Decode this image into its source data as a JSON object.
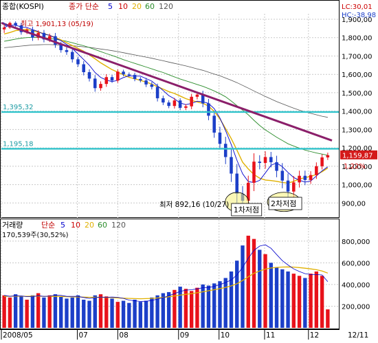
{
  "chart_data": [
    {
      "type": "candlestick",
      "panel": "price",
      "header": {
        "label_index": "종합(KOSPI)",
        "label_ma_prefix": "종가 단순",
        "ma_periods": [
          "5",
          "10",
          "20",
          "60",
          "120"
        ],
        "ma_colors": [
          "#0000cc",
          "#cc0000",
          "#e0b000",
          "#2a8c2a",
          "#555555"
        ]
      },
      "readout": {
        "lc": "LC:30,01",
        "hc": "HC:-38,98"
      },
      "y_ticks": [
        {
          "v": 1900,
          "label": "1,900,00"
        },
        {
          "v": 1800,
          "label": "1,800,00"
        },
        {
          "v": 1700,
          "label": "1,700,00"
        },
        {
          "v": 1600,
          "label": "1,600,00"
        },
        {
          "v": 1500,
          "label": "1,500,00"
        },
        {
          "v": 1400,
          "label": "1,400,00"
        },
        {
          "v": 1300,
          "label": "1,300,00"
        },
        {
          "v": 1200,
          "label": "1,200,00"
        },
        {
          "v": 1100,
          "label": "1,100,00"
        },
        {
          "v": 1000,
          "label": "1,000,00"
        },
        {
          "v": 900,
          "label": "900,00"
        }
      ],
      "ylim": [
        830,
        1930
      ],
      "current_price": {
        "value": 1159.87,
        "label": "1,159,87",
        "pct": "1,22%"
      },
      "horizontal_lines": [
        {
          "value": 1395.32,
          "label": "1,395,32"
        },
        {
          "value": 1195.18,
          "label": "1,195,18"
        }
      ],
      "trendline": {
        "start": {
          "x": 0.0,
          "y": 1880
        },
        "end": {
          "x": 1.0,
          "y": 1240
        }
      },
      "annotations": {
        "high": "최고 1,901,13 (05/19)",
        "low": "최저 892,16 (10/27)",
        "bottom1": "1차저점",
        "bottom2": "2차저점"
      },
      "closes": [
        1855,
        1880,
        1867,
        1830,
        1842,
        1800,
        1826,
        1790,
        1808,
        1762,
        1732,
        1722,
        1682,
        1655,
        1612,
        1577,
        1525,
        1548,
        1585,
        1566,
        1615,
        1600,
        1597,
        1575,
        1567,
        1545,
        1532,
        1470,
        1447,
        1428,
        1458,
        1418,
        1426,
        1478,
        1490,
        1442,
        1375,
        1283,
        1222,
        1150,
        1060,
        950,
        912,
        1010,
        1125,
        1118,
        1150,
        1122,
        1075,
        1022,
        962,
        1012,
        1048,
        1025,
        1052,
        1100,
        1148,
        1160
      ],
      "ranges": [
        55,
        20,
        25,
        40,
        30,
        50,
        40,
        45,
        40,
        50,
        40,
        45,
        50,
        40,
        50,
        45,
        55,
        40,
        45,
        35,
        35,
        30,
        30,
        35,
        30,
        40,
        40,
        50,
        40,
        35,
        40,
        35,
        35,
        45,
        40,
        60,
        70,
        80,
        90,
        110,
        130,
        150,
        120,
        110,
        130,
        100,
        90,
        80,
        100,
        120,
        110,
        100,
        80,
        80,
        60,
        60,
        50,
        40
      ],
      "ma20": [
        1820,
        1828,
        1838,
        1842,
        1845,
        1838,
        1830,
        1822,
        1812,
        1800,
        1788,
        1772,
        1757,
        1741,
        1726,
        1706,
        1685,
        1663,
        1644,
        1626,
        1612,
        1598,
        1584,
        1576,
        1567,
        1558,
        1547,
        1533,
        1520,
        1506,
        1496,
        1482,
        1468,
        1458,
        1450,
        1442,
        1428,
        1398,
        1358,
        1305,
        1250,
        1188,
        1122,
        1085,
        1055,
        1035,
        1025,
        1022,
        1018,
        1012,
        1008,
        1018,
        1030,
        1038,
        1045,
        1055,
        1070,
        1090
      ],
      "ma60": [
        1780,
        1786,
        1792,
        1797,
        1800,
        1802,
        1801,
        1799,
        1796,
        1792,
        1786,
        1780,
        1772,
        1764,
        1756,
        1746,
        1735,
        1724,
        1713,
        1703,
        1692,
        1680,
        1670,
        1660,
        1650,
        1640,
        1630,
        1620,
        1610,
        1598,
        1586,
        1575,
        1565,
        1555,
        1545,
        1535,
        1523,
        1510,
        1495,
        1478,
        1455,
        1430,
        1405,
        1380,
        1350,
        1322,
        1298,
        1278,
        1258,
        1240,
        1222,
        1210,
        1198,
        1188,
        1180,
        1172,
        1166,
        1160
      ],
      "ma120": [
        1745,
        1748,
        1751,
        1754,
        1757,
        1760,
        1761,
        1762,
        1762,
        1761,
        1760,
        1758,
        1756,
        1753,
        1750,
        1747,
        1743,
        1738,
        1734,
        1729,
        1724,
        1718,
        1712,
        1706,
        1700,
        1694,
        1688,
        1681,
        1674,
        1667,
        1660,
        1653,
        1646,
        1638,
        1630,
        1622,
        1612,
        1602,
        1592,
        1580,
        1568,
        1555,
        1540,
        1525,
        1510,
        1495,
        1480,
        1466,
        1452,
        1440,
        1428,
        1416,
        1405,
        1396,
        1388,
        1380,
        1372,
        1366
      ]
    },
    {
      "type": "bar",
      "panel": "volume",
      "header": {
        "label_volume": "거래량",
        "label_ma_prefix": "단순",
        "ma_periods": [
          "5",
          "10",
          "20",
          "60",
          "120"
        ],
        "ma_colors": [
          "#0000cc",
          "#cc0000",
          "#e0b000",
          "#2a8c2a",
          "#555555"
        ],
        "last_value": "170,539주(30,52%)"
      },
      "y_ticks": [
        {
          "v": 800000,
          "label": "800,000"
        },
        {
          "v": 600000,
          "label": "600,000"
        },
        {
          "v": 400000,
          "label": "400,000"
        },
        {
          "v": 200000,
          "label": "200,000"
        }
      ],
      "ylim": [
        0,
        900000
      ],
      "volumes": [
        300000,
        280000,
        310000,
        290000,
        260000,
        300000,
        320000,
        280000,
        300000,
        310000,
        290000,
        270000,
        280000,
        300000,
        260000,
        250000,
        300000,
        310000,
        290000,
        270000,
        240000,
        250000,
        230000,
        260000,
        240000,
        250000,
        280000,
        300000,
        320000,
        330000,
        350000,
        380000,
        360000,
        340000,
        370000,
        400000,
        390000,
        410000,
        430000,
        460000,
        520000,
        620000,
        760000,
        850000,
        820000,
        720000,
        680000,
        600000,
        560000,
        540000,
        520000,
        500000,
        480000,
        460000,
        500000,
        520000,
        480000,
        170539
      ],
      "vma20": [
        290000,
        292000,
        293000,
        292000,
        291000,
        292000,
        292000,
        291000,
        291000,
        290000,
        289000,
        288000,
        286000,
        285000,
        283000,
        282000,
        282000,
        282000,
        281000,
        279000,
        276000,
        274000,
        272000,
        270000,
        269000,
        270000,
        272000,
        276000,
        281000,
        287000,
        294000,
        302000,
        309000,
        316000,
        324000,
        333000,
        342000,
        352000,
        362000,
        373000,
        387000,
        407000,
        437000,
        471000,
        503000,
        525000,
        542000,
        552000,
        558000,
        561000,
        562000,
        560000,
        556000,
        550000,
        544000,
        536000,
        524000,
        505000
      ]
    }
  ],
  "x_axis": {
    "labels": [
      {
        "pos": 0.0,
        "text": "2008/05"
      },
      {
        "pos": 0.225,
        "text": "07"
      },
      {
        "pos": 0.345,
        "text": "08"
      },
      {
        "pos": 0.525,
        "text": "09"
      },
      {
        "pos": 0.645,
        "text": "10"
      },
      {
        "pos": 0.78,
        "text": "11"
      },
      {
        "pos": 0.91,
        "text": "12"
      }
    ],
    "right_label": "12/11"
  },
  "colors": {
    "up": "#e8121b",
    "down": "#1c3fc8",
    "hline": "#30c4cc",
    "trend": "#8b1f6a"
  }
}
